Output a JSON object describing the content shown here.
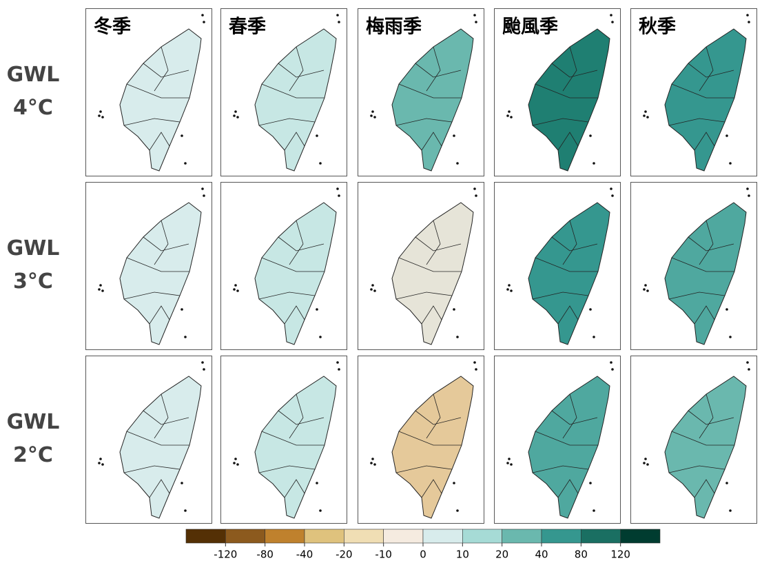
{
  "columns": [
    "冬季",
    "春季",
    "梅雨季",
    "颱風季",
    "秋季"
  ],
  "rows": [
    [
      "GWL",
      "4°C"
    ],
    [
      "GWL",
      "3°C"
    ],
    [
      "GWL",
      "2°C"
    ]
  ],
  "fills": [
    [
      "#d8ecec",
      "#c7e7e4",
      "#6ab8ae",
      "#1f7f72",
      "#35978f"
    ],
    [
      "#d8ecec",
      "#c7e7e4",
      "#e6e4d8",
      "#35978f",
      "#4fa89f"
    ],
    [
      "#d8ecec",
      "#c7e7e4",
      "#e5c99a",
      "#4fa89f",
      "#6ab8ae"
    ]
  ],
  "legend": {
    "colors": [
      "#543005",
      "#8c5a1e",
      "#bf812d",
      "#dfc27d",
      "#f0deb4",
      "#f5ebe0",
      "#d8ecec",
      "#a6dbd6",
      "#6ab8ae",
      "#35978f",
      "#1a6f62",
      "#003c30"
    ],
    "ticks": [
      -120,
      -80,
      -40,
      -20,
      -10,
      0,
      10,
      20,
      40,
      80,
      120
    ]
  }
}
